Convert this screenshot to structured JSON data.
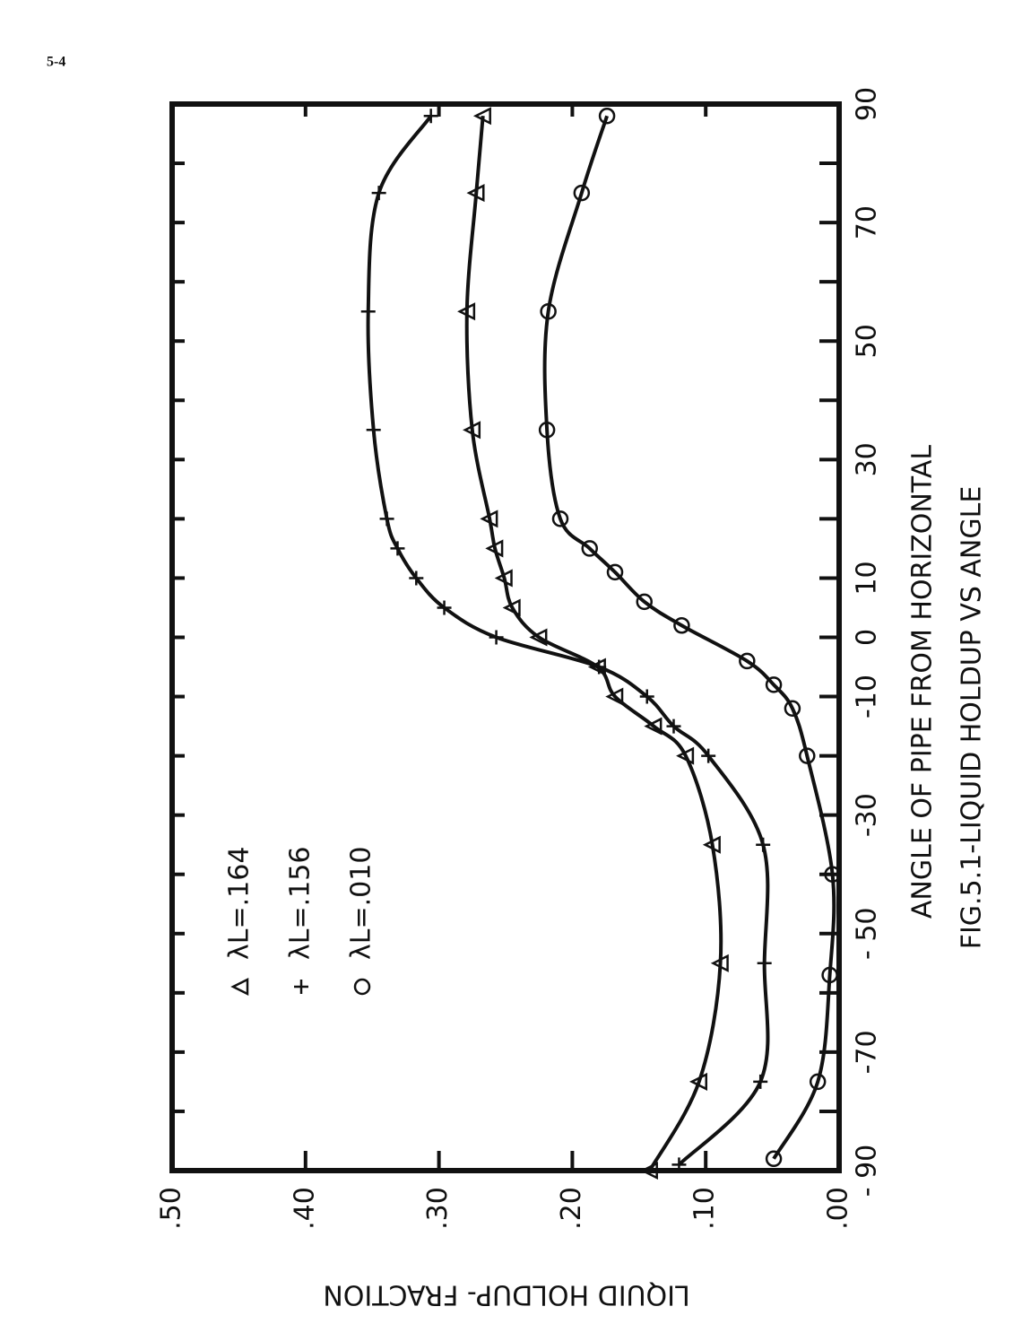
{
  "page_number": "5-4",
  "chart_data": {
    "type": "scatter-fit",
    "caption": "FIG.5.1-LIQUID HOLDUP VS ANGLE",
    "xlabel": "ANGLE OF PIPE FROM HORIZONTAL",
    "ylabel": "LIQUID HOLDUP- FRACTION",
    "xlim": [
      -90,
      90
    ],
    "xticks": [
      {
        "value": -90,
        "label": "- 90"
      },
      -70,
      {
        "value": -50,
        "label": "- 50"
      },
      -30,
      -10,
      0,
      10,
      30,
      50,
      70,
      90
    ],
    "xminorticks": [
      -80,
      -60,
      -40,
      -20,
      20,
      40,
      60,
      80
    ],
    "ylim": [
      0,
      0.5
    ],
    "yticks": [
      {
        "value": 0,
        "label": ".00"
      },
      {
        "value": 0.1,
        "label": ".10"
      },
      {
        "value": 0.2,
        "label": ".20"
      },
      {
        "value": 0.3,
        "label": ".30"
      },
      {
        "value": 0.4,
        "label": ".40"
      },
      {
        "value": 0.5,
        "label": ".50"
      }
    ],
    "grid": false,
    "series": [
      {
        "name": "λL=.164",
        "marker": "triangle",
        "color": "#111111",
        "x": [
          -90,
          -75,
          -55,
          -35,
          -20,
          -15,
          -10,
          -5,
          0,
          5,
          10,
          15,
          20,
          35,
          55,
          75,
          88
        ],
        "values": [
          0.142,
          0.105,
          0.089,
          0.095,
          0.115,
          0.139,
          0.168,
          0.181,
          0.225,
          0.245,
          0.251,
          0.258,
          0.262,
          0.275,
          0.279,
          0.272,
          0.267
        ]
      },
      {
        "name": "λL=.156",
        "marker": "plus",
        "color": "#111111",
        "x": [
          -89,
          -75,
          -55,
          -35,
          -20,
          -15,
          -10,
          -5,
          0,
          5,
          10,
          15,
          20,
          35,
          55,
          75,
          88
        ],
        "values": [
          0.12,
          0.059,
          0.056,
          0.057,
          0.098,
          0.124,
          0.144,
          0.18,
          0.257,
          0.296,
          0.317,
          0.331,
          0.339,
          0.349,
          0.353,
          0.345,
          0.306
        ]
      },
      {
        "name": "λL=.010",
        "marker": "circle",
        "color": "#111111",
        "x": [
          -88,
          -75,
          -57,
          -40,
          -20,
          -12,
          -8,
          -4,
          2,
          6,
          11,
          15,
          20,
          35,
          55,
          75,
          88
        ],
        "values": [
          0.049,
          0.016,
          0.007,
          0.005,
          0.024,
          0.035,
          0.049,
          0.069,
          0.118,
          0.146,
          0.168,
          0.187,
          0.209,
          0.219,
          0.218,
          0.193,
          0.174
        ]
      }
    ]
  }
}
